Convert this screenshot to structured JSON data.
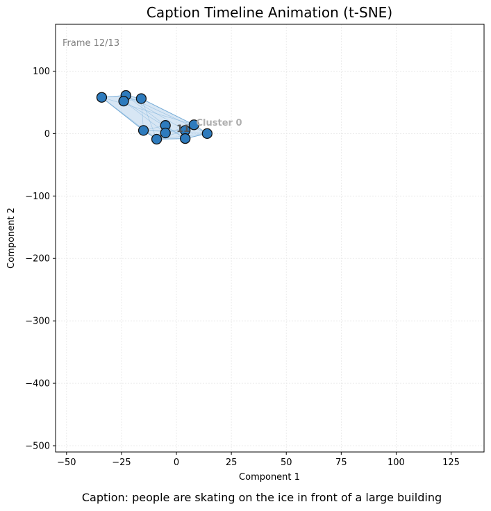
{
  "chart_data": {
    "type": "scatter",
    "title": "Caption Timeline Animation (t-SNE)",
    "xlabel": "Component 1",
    "ylabel": "Component 2",
    "xlim": [
      -55,
      140
    ],
    "ylim": [
      -510,
      175
    ],
    "xticks": [
      -50,
      -25,
      0,
      25,
      50,
      75,
      100,
      125
    ],
    "yticks": [
      100,
      0,
      -100,
      -200,
      -300,
      -400,
      -500
    ],
    "xtick_labels": [
      "−50",
      "−25",
      "0",
      "25",
      "50",
      "75",
      "100",
      "125"
    ],
    "ytick_labels": [
      "100",
      "0",
      "−100",
      "−200",
      "−300",
      "−400",
      "−500"
    ],
    "grid": true,
    "frame_text": "Frame 12/13",
    "series": [
      {
        "points": [
          {
            "x": -34,
            "y": 58
          },
          {
            "x": -23,
            "y": 61
          },
          {
            "x": -24,
            "y": 52
          },
          {
            "x": -16,
            "y": 56
          },
          {
            "x": -15,
            "y": 5
          },
          {
            "x": -5,
            "y": 13
          },
          {
            "x": -5,
            "y": 1
          },
          {
            "x": -9,
            "y": -9
          },
          {
            "x": 4,
            "y": 5
          },
          {
            "x": 4,
            "y": -8
          },
          {
            "x": 8,
            "y": 14
          },
          {
            "x": 14,
            "y": 0
          }
        ],
        "color": "#2e7bbd",
        "edgecolor": "#111111"
      }
    ],
    "hull_fill_color": "#a6c8e6",
    "hull_line_color": "#7aaed8",
    "cluster_annotation": {
      "text": "Cluster 0",
      "x": 9,
      "y": 17
    },
    "point_annotation": {
      "text": "11",
      "x": 0,
      "y": 8
    },
    "caption": "Caption: people are skating on the ice in front of a large building"
  }
}
